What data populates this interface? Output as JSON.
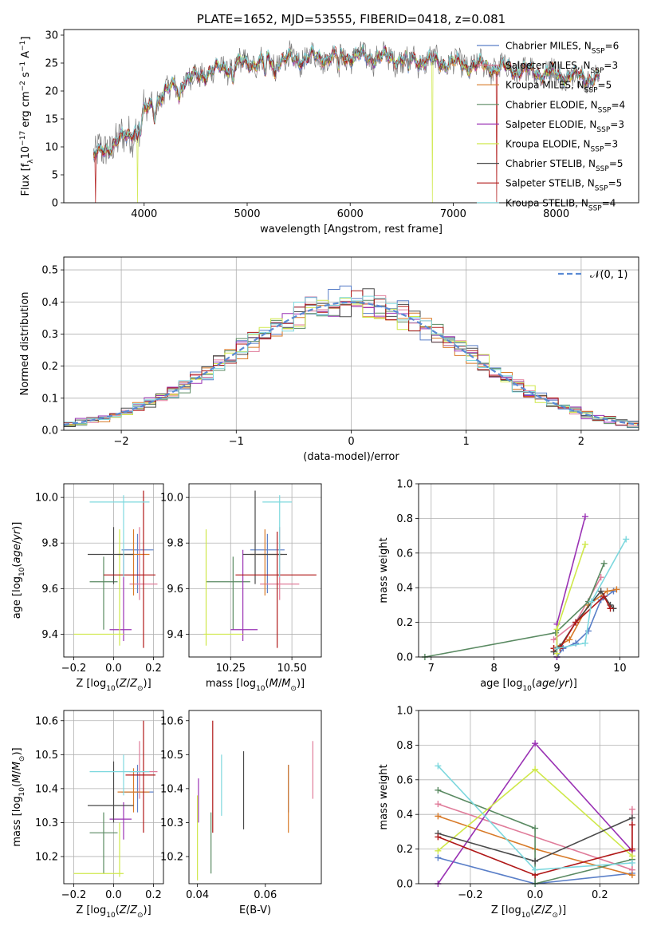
{
  "colors": {
    "chabrier_miles": "#5a7fc8",
    "salpeter_miles": "#e07c9a",
    "kroupa_miles": "#d87a28",
    "chabrier_elodie": "#5a8a62",
    "salpeter_elodie": "#9a32b4",
    "kroupa_elodie": "#cfe84a",
    "chabrier_stelib": "#4a4a4a",
    "salpeter_stelib": "#b01818",
    "kroupa_stelib": "#7ed8de",
    "normal": "#5a8ad4",
    "spectrum": "#7a7a7a",
    "grid": "#b0b0b0"
  },
  "chart_data": [
    {
      "id": "spectrum",
      "type": "line",
      "title": "PLATE=1652, MJD=53555, FIBERID=0418, z=0.081",
      "xlabel": "wavelength [Angstrom, rest frame]",
      "ylabel": "Flux [f_λ10^-17 erg cm^-2 s^-1 A^-1]",
      "xlim": [
        3220,
        8800
      ],
      "ylim": [
        0,
        31
      ],
      "xticks": [
        4000,
        5000,
        6000,
        7000,
        8000
      ],
      "yticks": [
        0,
        5,
        10,
        15,
        20,
        25,
        30
      ],
      "grid": false,
      "legend_position": "right",
      "legend": [
        {
          "key": "chabrier_miles",
          "label": "Chabrier MILES, N",
          "sub": "SSP",
          "tail": "=6"
        },
        {
          "key": "salpeter_miles",
          "label": "Salpeter MILES, N",
          "sub": "SSP",
          "tail": "=3"
        },
        {
          "key": "kroupa_miles",
          "label": "Kroupa MILES, N",
          "sub": "SSP",
          "tail": "=5"
        },
        {
          "key": "chabrier_elodie",
          "label": "Chabrier ELODIE, N",
          "sub": "SSP",
          "tail": "=4"
        },
        {
          "key": "salpeter_elodie",
          "label": "Salpeter ELODIE, N",
          "sub": "SSP",
          "tail": "=3"
        },
        {
          "key": "kroupa_elodie",
          "label": "Kroupa ELODIE, N",
          "sub": "SSP",
          "tail": "=3"
        },
        {
          "key": "chabrier_stelib",
          "label": "Chabrier STELIB, N",
          "sub": "SSP",
          "tail": "=5"
        },
        {
          "key": "salpeter_stelib",
          "label": "Salpeter STELIB, N",
          "sub": "SSP",
          "tail": "=5"
        },
        {
          "key": "kroupa_stelib",
          "label": "Kroupa STELIB, N",
          "sub": "SSP",
          "tail": "=4"
        }
      ],
      "continuum": {
        "x": [
          3510,
          3600,
          3700,
          3800,
          3900,
          4000,
          4100,
          4200,
          4300,
          4400,
          4500,
          4600,
          4700,
          4800,
          4900,
          5000,
          5200,
          5400,
          5600,
          5800,
          6000,
          6200,
          6400,
          6600,
          6800,
          7000,
          7200,
          7400,
          7600,
          7800,
          8000,
          8200,
          8400
        ],
        "y": [
          8,
          9.5,
          10.5,
          11.5,
          13,
          16,
          18,
          19.5,
          21,
          21.8,
          22.5,
          23.2,
          23.8,
          24.3,
          24.7,
          25,
          25.3,
          25.6,
          25.9,
          26.1,
          26.2,
          26.1,
          25.9,
          25.6,
          25.3,
          25,
          24.6,
          24.2,
          23.8,
          23.4,
          23,
          22.6,
          22.2
        ]
      },
      "dips": [
        {
          "x": 3530,
          "y": 0,
          "model": "salpeter_stelib"
        },
        {
          "x": 3934,
          "y": 0,
          "model": "kroupa_elodie"
        },
        {
          "x": 6800,
          "y": 0,
          "model": "kroupa_elodie"
        },
        {
          "x": 7420,
          "y": 0,
          "model": "salpeter_stelib"
        }
      ]
    },
    {
      "id": "residuals",
      "type": "histogram",
      "xlabel": "(data-model)/error",
      "ylabel": "Normed distribution",
      "xlim": [
        -2.5,
        2.5
      ],
      "ylim": [
        0,
        0.54
      ],
      "xticks": [
        -2,
        -1,
        0,
        1,
        2
      ],
      "yticks": [
        0.0,
        0.1,
        0.2,
        0.3,
        0.4,
        0.5
      ],
      "bin_width": 0.1,
      "grid": true,
      "legend_position": "top-right",
      "legend": [
        {
          "key": "normal",
          "label": "𝒩(0, 1)"
        }
      ]
    },
    {
      "id": "z_age",
      "type": "errorbar",
      "xlabel": "Z [log10(Z/Z⊙)]",
      "ylabel": "age [log10(age/yr)]",
      "xlim": [
        -0.25,
        0.25
      ],
      "ylim": [
        9.3,
        10.06
      ],
      "xticks": [
        -0.2,
        0.0,
        0.2
      ],
      "yticks": [
        9.4,
        9.6,
        9.8,
        10.0
      ],
      "grid": true,
      "points": [
        {
          "key": "chabrier_miles",
          "x": 0.12,
          "y": 9.77,
          "xlo": 0.04,
          "xhi": 0.2,
          "ylo": 9.58,
          "yhi": 9.84
        },
        {
          "key": "salpeter_miles",
          "x": 0.13,
          "y": 9.62,
          "xlo": 0.08,
          "xhi": 0.22,
          "ylo": 9.55,
          "yhi": 9.87
        },
        {
          "key": "kroupa_miles",
          "x": 0.1,
          "y": 9.75,
          "xlo": 0.02,
          "xhi": 0.18,
          "ylo": 9.57,
          "yhi": 9.86
        },
        {
          "key": "chabrier_elodie",
          "x": -0.05,
          "y": 9.63,
          "xlo": -0.12,
          "xhi": 0.02,
          "ylo": 9.42,
          "yhi": 9.74
        },
        {
          "key": "salpeter_elodie",
          "x": 0.05,
          "y": 9.42,
          "xlo": -0.02,
          "xhi": 0.09,
          "ylo": 9.37,
          "yhi": 9.77
        },
        {
          "key": "kroupa_elodie",
          "x": 0.03,
          "y": 9.4,
          "xlo": -0.2,
          "xhi": 0.05,
          "ylo": 9.35,
          "yhi": 9.86
        },
        {
          "key": "chabrier_stelib",
          "x": 0.0,
          "y": 9.75,
          "xlo": -0.13,
          "xhi": 0.1,
          "ylo": 9.62,
          "yhi": 9.87
        },
        {
          "key": "salpeter_stelib",
          "x": 0.15,
          "y": 9.66,
          "xlo": -0.05,
          "xhi": 0.21,
          "ylo": 9.34,
          "yhi": 10.03
        },
        {
          "key": "kroupa_stelib",
          "x": 0.05,
          "y": 9.98,
          "xlo": -0.12,
          "xhi": 0.18,
          "ylo": 9.65,
          "yhi": 10.01
        }
      ]
    },
    {
      "id": "mass_age",
      "type": "errorbar",
      "xlabel": "mass [log10(M/M⊙)]",
      "ylabel": "",
      "xlim": [
        10.08,
        10.62
      ],
      "ylim": [
        9.3,
        10.06
      ],
      "xticks": [
        10.25,
        10.5
      ],
      "yticks": [
        9.4,
        9.6,
        9.8,
        10.0
      ],
      "grid": true,
      "points": [
        {
          "key": "chabrier_miles",
          "x": 10.4,
          "y": 9.77,
          "xlo": 10.33,
          "xhi": 10.47,
          "ylo": 9.58,
          "yhi": 9.84
        },
        {
          "key": "salpeter_miles",
          "x": 10.45,
          "y": 9.62,
          "xlo": 10.37,
          "xhi": 10.53,
          "ylo": 9.55,
          "yhi": 9.87
        },
        {
          "key": "kroupa_miles",
          "x": 10.39,
          "y": 9.75,
          "xlo": 10.33,
          "xhi": 10.46,
          "ylo": 9.57,
          "yhi": 9.86
        },
        {
          "key": "chabrier_elodie",
          "x": 10.26,
          "y": 9.63,
          "xlo": 10.15,
          "xhi": 10.33,
          "ylo": 9.42,
          "yhi": 9.74
        },
        {
          "key": "salpeter_elodie",
          "x": 10.3,
          "y": 9.42,
          "xlo": 10.25,
          "xhi": 10.36,
          "ylo": 9.37,
          "yhi": 9.77
        },
        {
          "key": "kroupa_elodie",
          "x": 10.15,
          "y": 9.4,
          "xlo": 10.14,
          "xhi": 10.3,
          "ylo": 9.35,
          "yhi": 9.86
        },
        {
          "key": "chabrier_stelib",
          "x": 10.35,
          "y": 9.75,
          "xlo": 10.3,
          "xhi": 10.48,
          "ylo": 9.62,
          "yhi": 10.03
        },
        {
          "key": "salpeter_stelib",
          "x": 10.44,
          "y": 9.66,
          "xlo": 10.27,
          "xhi": 10.6,
          "ylo": 9.34,
          "yhi": 9.85
        },
        {
          "key": "kroupa_stelib",
          "x": 10.45,
          "y": 9.98,
          "xlo": 10.38,
          "xhi": 10.5,
          "ylo": 9.65,
          "yhi": 10.01
        }
      ]
    },
    {
      "id": "age_weight",
      "type": "line",
      "xlabel": "age  [log10(age/yr)]",
      "ylabel": "mass weight",
      "xlim": [
        6.8,
        10.3
      ],
      "ylim": [
        0,
        1.0
      ],
      "xticks": [
        7,
        8,
        9,
        10
      ],
      "yticks": [
        0.0,
        0.2,
        0.4,
        0.6,
        0.8,
        1.0
      ],
      "grid": true,
      "series": [
        {
          "key": "chabrier_miles",
          "x": [
            9.0,
            9.1,
            9.3,
            9.5,
            9.7,
            9.9
          ],
          "y": [
            0.0,
            0.05,
            0.08,
            0.15,
            0.33,
            0.38
          ]
        },
        {
          "key": "salpeter_miles",
          "x": [
            8.95,
            9.3,
            9.7
          ],
          "y": [
            0.1,
            0.2,
            0.46
          ]
        },
        {
          "key": "kroupa_miles",
          "x": [
            8.95,
            9.2,
            9.5,
            9.8,
            9.95
          ],
          "y": [
            0.05,
            0.1,
            0.3,
            0.38,
            0.39
          ]
        },
        {
          "key": "chabrier_elodie",
          "x": [
            6.9,
            8.98,
            9.5,
            9.75
          ],
          "y": [
            0.0,
            0.14,
            0.32,
            0.54
          ]
        },
        {
          "key": "salpeter_elodie",
          "x": [
            9.0,
            9.0,
            9.45
          ],
          "y": [
            0.0,
            0.19,
            0.81
          ]
        },
        {
          "key": "kroupa_elodie",
          "x": [
            9.0,
            9.0,
            9.45
          ],
          "y": [
            0.02,
            0.16,
            0.65
          ]
        },
        {
          "key": "chabrier_stelib",
          "x": [
            8.95,
            9.05,
            9.3,
            9.7,
            9.85,
            9.9
          ],
          "y": [
            0.03,
            0.06,
            0.2,
            0.38,
            0.3,
            0.28
          ]
        },
        {
          "key": "salpeter_stelib",
          "x": [
            8.95,
            9.05,
            9.3,
            9.75,
            9.85
          ],
          "y": [
            0.05,
            0.05,
            0.2,
            0.35,
            0.28
          ]
        },
        {
          "key": "kroupa_stelib",
          "x": [
            9.0,
            9.45,
            9.55,
            10.1
          ],
          "y": [
            0.05,
            0.08,
            0.32,
            0.68
          ]
        }
      ]
    },
    {
      "id": "z_mass",
      "type": "errorbar",
      "xlabel": "Z [log10(Z/Z⊙)]",
      "ylabel": "mass [log10(M/M⊙)]",
      "xlim": [
        -0.25,
        0.25
      ],
      "ylim": [
        10.12,
        10.63
      ],
      "xticks": [
        -0.2,
        0.0,
        0.2
      ],
      "yticks": [
        10.2,
        10.3,
        10.4,
        10.5,
        10.6
      ],
      "grid": true,
      "points": [
        {
          "key": "chabrier_miles",
          "x": 0.12,
          "y": 10.39,
          "xlo": 0.04,
          "xhi": 0.2,
          "ylo": 10.33,
          "yhi": 10.47
        },
        {
          "key": "salpeter_miles",
          "x": 0.13,
          "y": 10.45,
          "xlo": 0.08,
          "xhi": 0.22,
          "ylo": 10.37,
          "yhi": 10.54
        },
        {
          "key": "kroupa_miles",
          "x": 0.1,
          "y": 10.39,
          "xlo": 0.02,
          "xhi": 0.18,
          "ylo": 10.33,
          "yhi": 10.46
        },
        {
          "key": "chabrier_elodie",
          "x": -0.05,
          "y": 10.27,
          "xlo": -0.12,
          "xhi": 0.02,
          "ylo": 10.15,
          "yhi": 10.33
        },
        {
          "key": "salpeter_elodie",
          "x": 0.05,
          "y": 10.31,
          "xlo": -0.02,
          "xhi": 0.09,
          "ylo": 10.25,
          "yhi": 10.36
        },
        {
          "key": "kroupa_elodie",
          "x": 0.03,
          "y": 10.15,
          "xlo": -0.2,
          "xhi": 0.05,
          "ylo": 10.14,
          "yhi": 10.3
        },
        {
          "key": "chabrier_stelib",
          "x": 0.0,
          "y": 10.35,
          "xlo": -0.13,
          "xhi": 0.1,
          "ylo": 10.3,
          "yhi": 10.48
        },
        {
          "key": "salpeter_stelib",
          "x": 0.15,
          "y": 10.44,
          "xlo": 0.06,
          "xhi": 0.21,
          "ylo": 10.27,
          "yhi": 10.6
        },
        {
          "key": "kroupa_stelib",
          "x": 0.05,
          "y": 10.45,
          "xlo": -0.12,
          "xhi": 0.18,
          "ylo": 10.38,
          "yhi": 10.5
        }
      ]
    },
    {
      "id": "ebv_mass",
      "type": "errorbar",
      "xlabel": "E(B-V)",
      "ylabel": "",
      "xlim": [
        0.0375,
        0.0765
      ],
      "ylim": [
        10.12,
        10.63
      ],
      "xticks": [
        0.04,
        0.06
      ],
      "yticks": [
        10.2,
        10.3,
        10.4,
        10.5,
        10.6
      ],
      "grid": false,
      "points": [
        {
          "key": "chabrier_miles",
          "x": 0.0668,
          "y": 10.4,
          "xlo": 0.0668,
          "xhi": 0.0668,
          "ylo": 10.33,
          "yhi": 10.47
        },
        {
          "key": "salpeter_miles",
          "x": 0.074,
          "y": 10.45,
          "xlo": 0.074,
          "xhi": 0.074,
          "ylo": 10.37,
          "yhi": 10.54
        },
        {
          "key": "kroupa_miles",
          "x": 0.0668,
          "y": 10.39,
          "xlo": 0.0668,
          "xhi": 0.0668,
          "ylo": 10.27,
          "yhi": 10.47
        },
        {
          "key": "chabrier_elodie",
          "x": 0.044,
          "y": 10.27,
          "xlo": 0.044,
          "xhi": 0.044,
          "ylo": 10.15,
          "yhi": 10.33
        },
        {
          "key": "salpeter_elodie",
          "x": 0.0403,
          "y": 10.36,
          "xlo": 0.0403,
          "xhi": 0.0403,
          "ylo": 10.3,
          "yhi": 10.43
        },
        {
          "key": "kroupa_elodie",
          "x": 0.04,
          "y": 10.3,
          "xlo": 0.04,
          "xhi": 0.04,
          "ylo": 10.13,
          "yhi": 10.38
        },
        {
          "key": "chabrier_stelib",
          "x": 0.0536,
          "y": 10.42,
          "xlo": 0.0536,
          "xhi": 0.0536,
          "ylo": 10.28,
          "yhi": 10.51
        },
        {
          "key": "salpeter_stelib",
          "x": 0.0445,
          "y": 10.44,
          "xlo": 0.0445,
          "xhi": 0.0445,
          "ylo": 10.27,
          "yhi": 10.6
        },
        {
          "key": "kroupa_stelib",
          "x": 0.0471,
          "y": 10.43,
          "xlo": 0.0471,
          "xhi": 0.0471,
          "ylo": 10.32,
          "yhi": 10.5
        }
      ]
    },
    {
      "id": "z_weight",
      "type": "line",
      "xlabel": "Z [log10(Z/Z⊙)]",
      "ylabel": "mass weight",
      "xlim": [
        -0.36,
        0.32
      ],
      "ylim": [
        0,
        1.0
      ],
      "xticks": [
        -0.2,
        0.0,
        0.2
      ],
      "yticks": [
        0.0,
        0.2,
        0.4,
        0.6,
        0.8,
        1.0
      ],
      "grid": true,
      "series": [
        {
          "key": "chabrier_miles",
          "x": [
            -0.3,
            0.0,
            0.3
          ],
          "y": [
            0.15,
            0.0,
            0.06
          ]
        },
        {
          "key": "salpeter_miles",
          "x": [
            -0.3,
            0.3,
            0.3
          ],
          "y": [
            0.46,
            0.08,
            0.43
          ]
        },
        {
          "key": "kroupa_miles",
          "x": [
            -0.3,
            0.0,
            0.3
          ],
          "y": [
            0.39,
            0.2,
            0.05
          ]
        },
        {
          "key": "chabrier_elodie",
          "x": [
            -0.3,
            0.0,
            0.0,
            0.3
          ],
          "y": [
            0.54,
            0.32,
            0.0,
            0.14
          ]
        },
        {
          "key": "salpeter_elodie",
          "x": [
            -0.3,
            0.0,
            0.3
          ],
          "y": [
            0.0,
            0.81,
            0.19
          ]
        },
        {
          "key": "kroupa_elodie",
          "x": [
            -0.3,
            0.0,
            0.3
          ],
          "y": [
            0.19,
            0.66,
            0.16
          ]
        },
        {
          "key": "chabrier_stelib",
          "x": [
            -0.3,
            0.0,
            0.3
          ],
          "y": [
            0.29,
            0.13,
            0.38
          ]
        },
        {
          "key": "salpeter_stelib",
          "x": [
            -0.3,
            0.0,
            0.3,
            0.3
          ],
          "y": [
            0.27,
            0.05,
            0.2,
            0.34
          ]
        },
        {
          "key": "kroupa_stelib",
          "x": [
            -0.3,
            0.0,
            0.3
          ],
          "y": [
            0.68,
            0.08,
            0.12
          ]
        }
      ]
    }
  ]
}
